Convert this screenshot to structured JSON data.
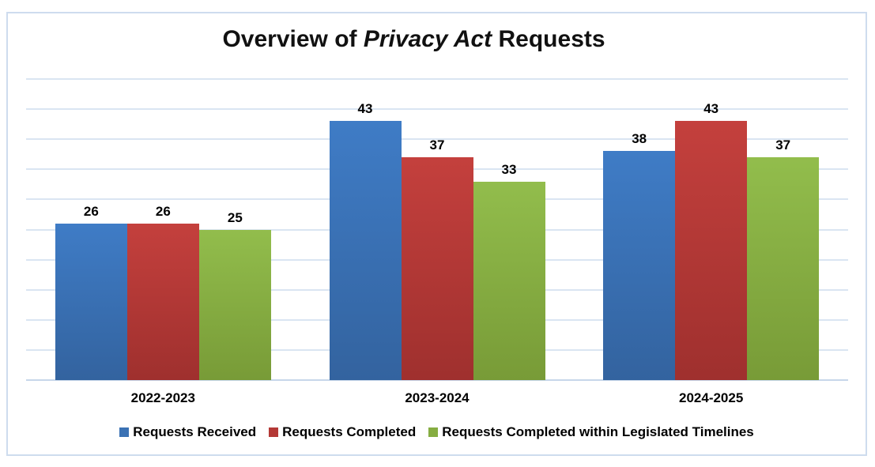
{
  "chart_data": {
    "type": "bar",
    "title": {
      "prefix": "Overview of ",
      "italic": "Privacy Act",
      "suffix": " Requests",
      "full": "Overview of Privacy Act Requests"
    },
    "categories": [
      "2022-2023",
      "2023-2024",
      "2024-2025"
    ],
    "series": [
      {
        "name": "Requests Received",
        "values": [
          26,
          43,
          38
        ],
        "color": "#3B72B4",
        "gradient_top": "#3F7CC6",
        "gradient_bottom": "#33639F"
      },
      {
        "name": "Requests Completed",
        "values": [
          26,
          37,
          43
        ],
        "color": "#B43936",
        "gradient_top": "#C4403D",
        "gradient_bottom": "#9F302E"
      },
      {
        "name": "Requests Completed within Legislated Timelines",
        "values": [
          25,
          33,
          37
        ],
        "color": "#86AD42",
        "gradient_top": "#92BD4C",
        "gradient_bottom": "#789B37"
      }
    ],
    "ylim": [
      0,
      50
    ],
    "gridline_interval": 5,
    "grid": true,
    "y_axis_labels_visible": false,
    "data_labels": true,
    "legend_position": "bottom",
    "xlabel": "",
    "ylabel": ""
  },
  "style": {
    "frame_border_color": "#CEDCEE",
    "gridline_color": "#DAE5F2",
    "axis_line_color": "#C7D7EA",
    "background": "#FFFFFF",
    "text_color": "#000000"
  }
}
